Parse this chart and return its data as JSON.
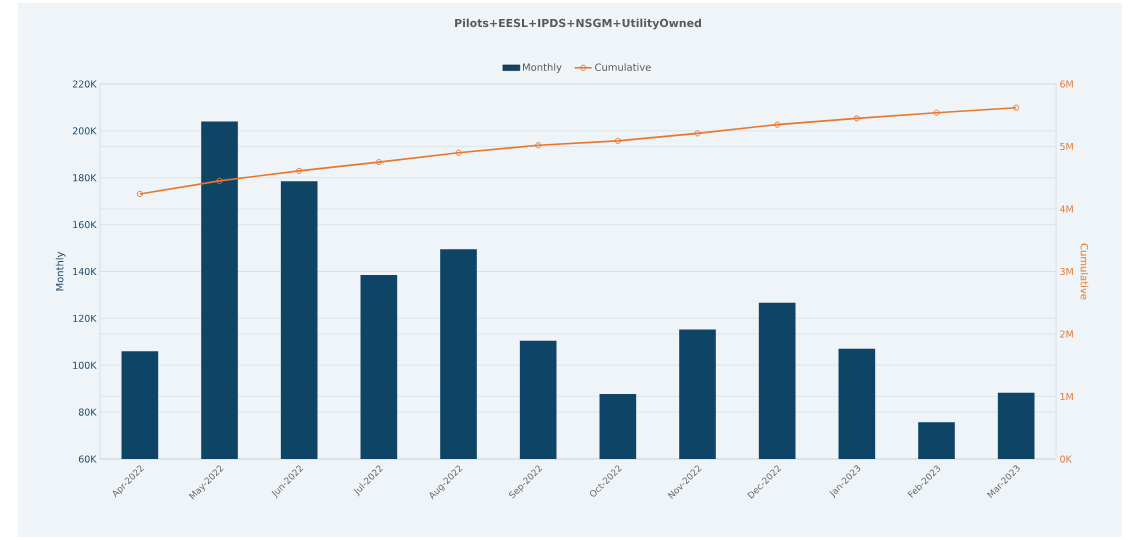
{
  "chart_data": {
    "type": "bar",
    "title": "Pilots+EESL+IPDS+NSGM+UtilityOwned",
    "ylabel": "Monthly",
    "y2label": "Cumulative",
    "categories": [
      "Apr-2022",
      "May-2022",
      "Jun-2022",
      "Jul-2022",
      "Aug-2022",
      "Sep-2022",
      "Oct-2022",
      "Nov-2022",
      "Dec-2022",
      "Jan-2023",
      "Feb-2023",
      "Mar-2023"
    ],
    "series": [
      {
        "name": "Monthly",
        "color": "#0e4466",
        "values": [
          106000,
          204000,
          178500,
          138500,
          149500,
          110500,
          87700,
          115200,
          126700,
          107000,
          75700,
          88300
        ]
      },
      {
        "name": "Cumulative",
        "type": "line",
        "axis": "y2",
        "color": "#e8772e",
        "values": [
          4240000,
          4450000,
          4610000,
          4750000,
          4900000,
          5020000,
          5090000,
          5210000,
          5350000,
          5450000,
          5540000,
          5620000
        ]
      }
    ],
    "ylim": [
      60000,
      220000
    ],
    "yticks": [
      {
        "value": 60000,
        "label": "60K"
      },
      {
        "value": 80000,
        "label": "80K"
      },
      {
        "value": 100000,
        "label": "100K"
      },
      {
        "value": 120000,
        "label": "120K"
      },
      {
        "value": 140000,
        "label": "140K"
      },
      {
        "value": 160000,
        "label": "160K"
      },
      {
        "value": 180000,
        "label": "180K"
      },
      {
        "value": 200000,
        "label": "200K"
      },
      {
        "value": 220000,
        "label": "220K"
      }
    ],
    "y2lim": [
      0,
      6000000
    ],
    "y2ticks": [
      {
        "value": 0,
        "label": "0K"
      },
      {
        "value": 1000000,
        "label": "1M"
      },
      {
        "value": 2000000,
        "label": "2M"
      },
      {
        "value": 3000000,
        "label": "3M"
      },
      {
        "value": 4000000,
        "label": "4M"
      },
      {
        "value": 5000000,
        "label": "5M"
      },
      {
        "value": 6000000,
        "label": "6M"
      }
    ],
    "grid": "y",
    "legend": "top",
    "marker": "circle",
    "line_style": "solid"
  }
}
